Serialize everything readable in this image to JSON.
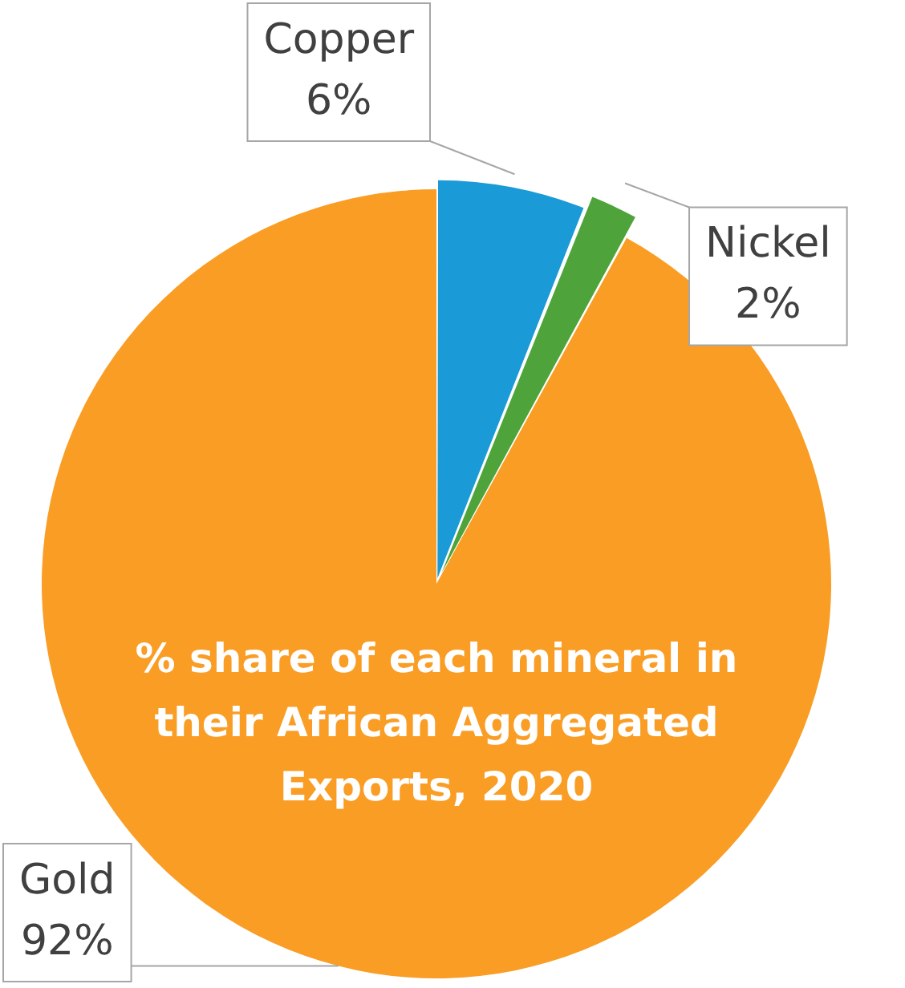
{
  "chart_data": {
    "type": "pie",
    "title": "% share of each mineral in their African Aggregated Exports, 2020",
    "categories": [
      "Copper",
      "Nickel",
      "Gold"
    ],
    "values": [
      6,
      2,
      92
    ],
    "colors": [
      "#1a9ad6",
      "#4ea43a",
      "#f99d25"
    ],
    "value_labels": [
      "6%",
      "2%",
      "92%"
    ],
    "legend": false
  }
}
